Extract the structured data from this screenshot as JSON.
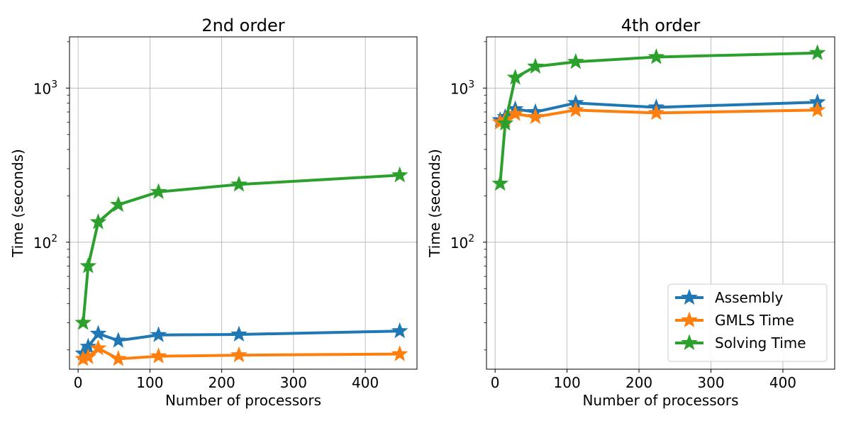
{
  "chart_data": [
    {
      "type": "line",
      "title": "2nd order",
      "xlabel": "Number of processors",
      "ylabel": "Time (seconds)",
      "yscale": "log",
      "xlim": [
        -12,
        472
      ],
      "ylim": [
        15,
        2150
      ],
      "xticks": [
        0,
        100,
        200,
        300,
        400
      ],
      "yticks": [
        {
          "value": 100,
          "label": "10",
          "exp": "2"
        },
        {
          "value": 1000,
          "label": "10",
          "exp": "3"
        }
      ],
      "grid": true,
      "legend": null,
      "x": [
        7,
        14,
        28,
        56,
        112,
        224,
        448
      ],
      "series": [
        {
          "name": "Assembly",
          "color": "#1f77b4",
          "values": [
            19,
            21,
            25.5,
            23,
            25,
            25.2,
            26.5
          ]
        },
        {
          "name": "GMLS Time",
          "color": "#ff7f0e",
          "values": [
            17.5,
            18,
            20.5,
            17.5,
            18.2,
            18.5,
            18.8
          ]
        },
        {
          "name": "Solving Time",
          "color": "#2ca02c",
          "values": [
            30,
            70,
            135,
            175,
            212,
            237,
            272
          ]
        }
      ]
    },
    {
      "type": "line",
      "title": "4th order",
      "xlabel": "Number of processors",
      "ylabel": "Time (seconds)",
      "yscale": "log",
      "xlim": [
        -12,
        472
      ],
      "ylim": [
        15,
        2150
      ],
      "xticks": [
        0,
        100,
        200,
        300,
        400
      ],
      "yticks": [
        {
          "value": 100,
          "label": "10",
          "exp": "2"
        },
        {
          "value": 1000,
          "label": "10",
          "exp": "3"
        }
      ],
      "grid": true,
      "legend": "lower-right",
      "x": [
        7,
        14,
        28,
        56,
        112,
        224,
        448
      ],
      "series": [
        {
          "name": "Assembly",
          "color": "#1f77b4",
          "values": [
            620,
            650,
            730,
            700,
            800,
            750,
            810
          ]
        },
        {
          "name": "GMLS Time",
          "color": "#ff7f0e",
          "values": [
            600,
            620,
            680,
            650,
            720,
            690,
            720
          ]
        },
        {
          "name": "Solving Time",
          "color": "#2ca02c",
          "values": [
            240,
            590,
            1170,
            1380,
            1480,
            1590,
            1690
          ]
        }
      ]
    }
  ]
}
